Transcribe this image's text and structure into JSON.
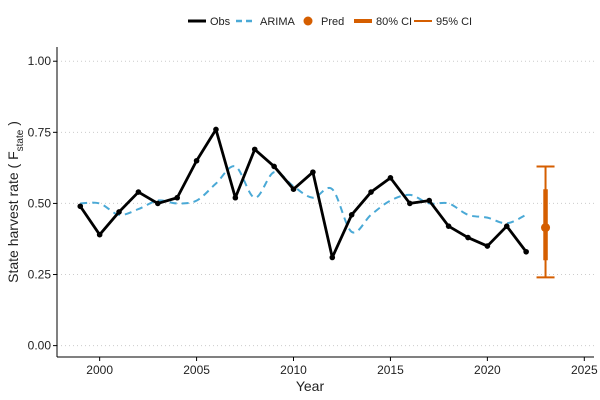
{
  "chart_data": {
    "type": "line",
    "xlabel": "Year",
    "ylabel": {
      "main": "State harvest rate (  F",
      "subscript": "state",
      "close": " )"
    },
    "xlim": [
      1997.8,
      2025.5
    ],
    "ylim": [
      -0.04,
      1.05
    ],
    "x_ticks": [
      2000,
      2005,
      2010,
      2015,
      2020,
      2025
    ],
    "x_tick_labels": [
      "2000",
      "2005",
      "2010",
      "2015",
      "2020",
      "2025"
    ],
    "y_ticks": [
      0,
      0.25,
      0.5,
      0.75,
      1
    ],
    "y_tick_labels": [
      "0.00",
      "0.25",
      "0.50",
      "0.75",
      "1.00"
    ],
    "grid": "horizontal dotted",
    "legend_position": "top",
    "colors": {
      "obs": "#000000",
      "arima": "#4aa9d6",
      "pred": "#d55e00",
      "grid": "#cccccc"
    },
    "series": [
      {
        "name": "Obs",
        "style": "solid line with points",
        "x": [
          1999,
          2000,
          2001,
          2002,
          2003,
          2004,
          2005,
          2006,
          2007,
          2008,
          2009,
          2010,
          2011,
          2012,
          2013,
          2014,
          2015,
          2016,
          2017,
          2018,
          2019,
          2020,
          2021,
          2022
        ],
        "y": [
          0.49,
          0.39,
          0.47,
          0.54,
          0.5,
          0.52,
          0.65,
          0.76,
          0.52,
          0.69,
          0.63,
          0.55,
          0.61,
          0.31,
          0.46,
          0.54,
          0.59,
          0.5,
          0.51,
          0.42,
          0.38,
          0.35,
          0.42,
          0.33
        ]
      },
      {
        "name": "ARIMA",
        "style": "dashed line",
        "x": [
          1999,
          2000,
          2001,
          2002,
          2003,
          2004,
          2005,
          2006,
          2007,
          2008,
          2009,
          2010,
          2011,
          2012,
          2013,
          2014,
          2015,
          2016,
          2017,
          2018,
          2019,
          2020,
          2021,
          2022
        ],
        "y": [
          0.5,
          0.5,
          0.46,
          0.48,
          0.51,
          0.5,
          0.51,
          0.57,
          0.63,
          0.52,
          0.61,
          0.56,
          0.52,
          0.55,
          0.4,
          0.46,
          0.51,
          0.53,
          0.5,
          0.5,
          0.46,
          0.45,
          0.43,
          0.46
        ]
      }
    ],
    "prediction": {
      "label": "Pred",
      "x": 2023,
      "y": 0.415,
      "ci80_label": "80% CI",
      "ci80": [
        0.3,
        0.55
      ],
      "ci95_label": "95% CI",
      "ci95": [
        0.24,
        0.63
      ]
    }
  }
}
